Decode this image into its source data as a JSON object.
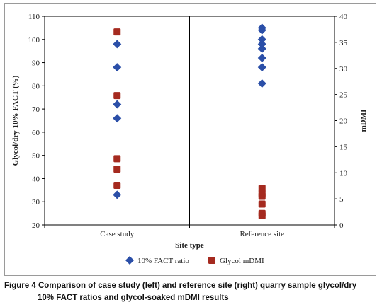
{
  "chart_data": {
    "type": "scatter",
    "categories": [
      "Case study",
      "Reference site"
    ],
    "xlabel": "Site type",
    "ylabel_left": "Glycol/dry 10% FACT (%)",
    "ylabel_right": "mDMI",
    "ylim_left": [
      20,
      110
    ],
    "ylim_right": [
      0,
      40
    ],
    "yticks_left": [
      20,
      30,
      40,
      50,
      60,
      70,
      80,
      90,
      100,
      110
    ],
    "yticks_right": [
      0,
      5,
      10,
      15,
      20,
      25,
      30,
      35,
      40
    ],
    "grid": false,
    "legend_position": "bottom",
    "series": [
      {
        "name": "10% FACT ratio",
        "axis": "left",
        "marker": "diamond",
        "color": "#2b4fa8",
        "points": [
          {
            "category": "Case study",
            "y": 98
          },
          {
            "category": "Case study",
            "y": 88
          },
          {
            "category": "Case study",
            "y": 72
          },
          {
            "category": "Case study",
            "y": 66
          },
          {
            "category": "Case study",
            "y": 33
          },
          {
            "category": "Reference site",
            "y": 105
          },
          {
            "category": "Reference site",
            "y": 104
          },
          {
            "category": "Reference site",
            "y": 100
          },
          {
            "category": "Reference site",
            "y": 98
          },
          {
            "category": "Reference site",
            "y": 96
          },
          {
            "category": "Reference site",
            "y": 92
          },
          {
            "category": "Reference site",
            "y": 88
          },
          {
            "category": "Reference site",
            "y": 81
          }
        ]
      },
      {
        "name": "Glycol mDMI",
        "axis": "right",
        "marker": "square",
        "color": "#a52a1f",
        "points": [
          {
            "category": "Case study",
            "y": 37
          },
          {
            "category": "Case study",
            "y": 24.8
          },
          {
            "category": "Case study",
            "y": 12.7
          },
          {
            "category": "Case study",
            "y": 10.7
          },
          {
            "category": "Case study",
            "y": 7.6
          },
          {
            "category": "Reference site",
            "y": 7
          },
          {
            "category": "Reference site",
            "y": 6
          },
          {
            "category": "Reference site",
            "y": 5.5
          },
          {
            "category": "Reference site",
            "y": 4
          },
          {
            "category": "Reference site",
            "y": 2.2
          },
          {
            "category": "Reference site",
            "y": 1.8
          }
        ]
      }
    ]
  },
  "caption": {
    "label": "Figure 4",
    "line1": "Comparison of case study (left) and reference site (right) quarry sample glycol/dry",
    "line2": "10% FACT ratios and glycol-soaked mDMI results"
  }
}
